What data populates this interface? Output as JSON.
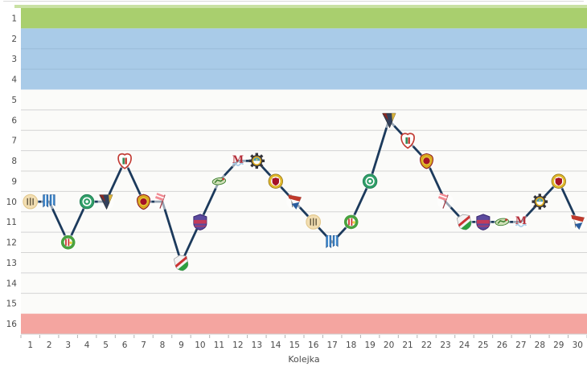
{
  "chart_data": {
    "type": "line",
    "title": "",
    "xlabel": "Kolejka",
    "ylabel": "",
    "y_axis_reversed": true,
    "grid": true,
    "legend": "none",
    "x_ticks": [
      1,
      2,
      3,
      4,
      5,
      6,
      7,
      8,
      9,
      10,
      11,
      12,
      13,
      14,
      15,
      16,
      17,
      18,
      19,
      20,
      21,
      22,
      23,
      24,
      25,
      26,
      27,
      28,
      29,
      30
    ],
    "y_ticks": [
      1,
      2,
      3,
      4,
      5,
      6,
      7,
      8,
      9,
      10,
      11,
      12,
      13,
      14,
      15,
      16
    ],
    "series": [
      {
        "name": "league-position",
        "values": [
          10,
          10,
          12,
          10,
          10,
          8,
          10,
          10,
          13,
          11,
          9,
          8,
          8,
          9,
          10,
          11,
          12,
          11,
          9,
          6,
          7,
          8,
          10,
          11,
          11,
          11,
          11,
          10,
          9,
          11
        ]
      }
    ],
    "bands": [
      {
        "name": "position-1-zone",
        "from": 1,
        "to": 1,
        "color": "#a9cf6e",
        "edge": "#c9e1a4"
      },
      {
        "name": "positions-2-4-zone",
        "from": 2,
        "to": 4,
        "color": "#a9cbe8",
        "grid": "#9bbcd9"
      },
      {
        "name": "positions-5-15-zone",
        "from": 5,
        "to": 15,
        "color": "#fbfbf9",
        "grid": "#d4d4d4"
      },
      {
        "name": "position-16-zone",
        "from": 16,
        "to": 16,
        "color": "#f4a5a0"
      }
    ],
    "colors": {
      "line": "#1c3a5c",
      "tick": "#b3b3b3",
      "label": "#4a4a4a",
      "axis": "#cfcfcf"
    },
    "crests": [
      {
        "name": "cream-wreath-crest",
        "shape": "striped-circle",
        "colors": [
          "#f2deb2",
          "#6a5f46",
          "#e3c98f"
        ]
      },
      {
        "name": "blue-ribbons-crest",
        "shape": "ribbons",
        "colors": [
          "#4189cc",
          "#ffffff",
          "#22558f"
        ]
      },
      {
        "name": "green-laurel-crest",
        "shape": "wreath-circle",
        "colors": [
          "#49a23f",
          "#cc3333",
          "#e8d43f"
        ]
      },
      {
        "name": "teal-ring-crest",
        "shape": "ring-circle",
        "colors": [
          "#2f9e68",
          "#ffffff",
          "#1e7a50"
        ]
      },
      {
        "name": "navy-pennant-crest",
        "shape": "pennant-down",
        "colors": [
          "#33415c",
          "#8a2a22",
          "#d9b23a"
        ]
      },
      {
        "name": "red-white-heart-crest",
        "shape": "heart-shield",
        "colors": [
          "#ffffff",
          "#c23b33",
          "#2e8b57"
        ]
      },
      {
        "name": "gold-red-shield-crest",
        "shape": "round-shield",
        "colors": [
          "#d9a81f",
          "#a51226",
          "#e8d43f"
        ]
      },
      {
        "name": "pink-flag-crest",
        "shape": "flag",
        "colors": [
          "#f28b93",
          "#ffffff",
          "#9e3a44"
        ]
      },
      {
        "name": "green-red-diagonal-crest",
        "shape": "diag-shield",
        "colors": [
          "#2d9e3f",
          "#cc3333",
          "#f4f4f4"
        ]
      },
      {
        "name": "purple-crimson-crest",
        "shape": "band-shield",
        "colors": [
          "#5b4a9e",
          "#c23b5a",
          "#38266e"
        ]
      },
      {
        "name": "green-figure-crest",
        "shape": "figure",
        "colors": [
          "#cfe0b8",
          "#3a7d2c",
          "#cc3333"
        ]
      },
      {
        "name": "red-m-waves-crest",
        "shape": "m-waves",
        "colors": [
          "#b5303a",
          "#a8cce8",
          "#2a5d9e"
        ]
      },
      {
        "name": "gear-crest",
        "shape": "gear",
        "colors": [
          "#33333a",
          "#d9a81f",
          "#4a9ab5"
        ]
      },
      {
        "name": "gold-red-circle-crest",
        "shape": "gold-ring-shield",
        "colors": [
          "#e0b82a",
          "#a51226",
          "#ffffff"
        ]
      },
      {
        "name": "tricolor-pennant-crest",
        "shape": "tri-pennant",
        "colors": [
          "#c0392b",
          "#ffffff",
          "#2a5d9e"
        ]
      }
    ],
    "marker_crest": [
      0,
      1,
      2,
      3,
      4,
      5,
      6,
      7,
      8,
      9,
      10,
      11,
      12,
      13,
      14,
      0,
      1,
      2,
      3,
      4,
      5,
      6,
      7,
      8,
      9,
      10,
      11,
      12,
      13,
      14
    ]
  }
}
